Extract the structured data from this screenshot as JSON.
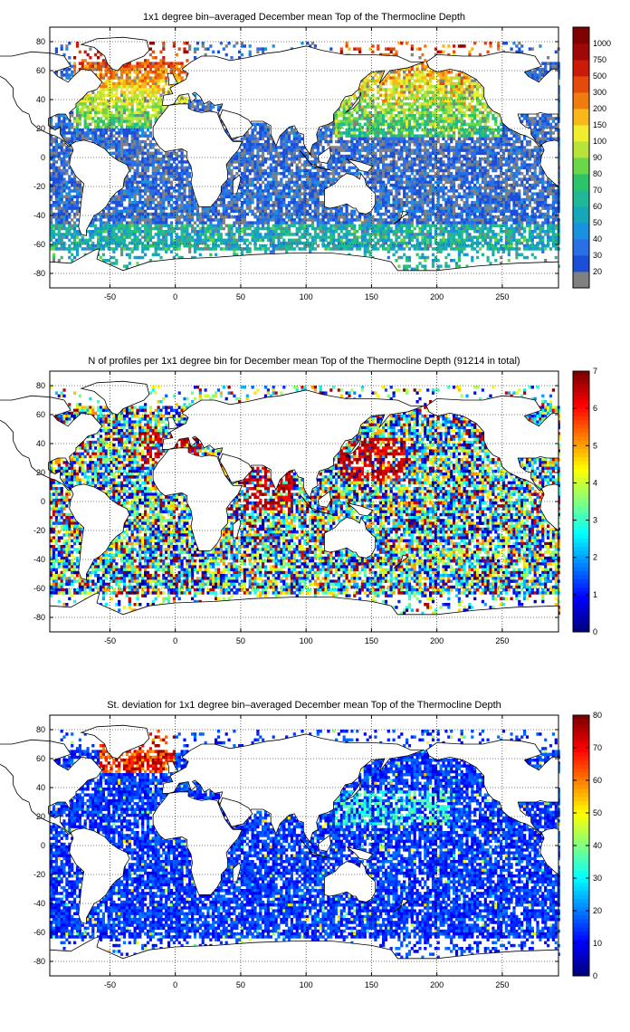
{
  "panels": [
    {
      "title": "1x1 degree bin–averaged December mean Top of the Thermocline Depth",
      "colorbar": {
        "type": "categorical",
        "labels": [
          "20",
          "30",
          "40",
          "50",
          "60",
          "70",
          "80",
          "90",
          "100",
          "150",
          "200",
          "300",
          "500",
          "750",
          "1000"
        ],
        "colors": [
          "#808080",
          "#1c4fd8",
          "#2a6fe6",
          "#1a90e0",
          "#14a8b8",
          "#20b896",
          "#2cc468",
          "#6cd64a",
          "#b8e43a",
          "#f0ec2e",
          "#f8b81a",
          "#f07c10",
          "#e44a0c",
          "#cc1a08",
          "#a00808",
          "#800000"
        ]
      }
    },
    {
      "title": "N of profiles per 1x1 degree bin for December mean Top of the Thermocline Depth  (91214 in total)",
      "colorbar": {
        "type": "continuous",
        "min": 0,
        "max": 7,
        "ticks": [
          "0",
          "1",
          "2",
          "3",
          "4",
          "5",
          "6",
          "7"
        ]
      }
    },
    {
      "title": "St. deviation for 1x1 degree bin–averaged December mean Top of the Thermocline Depth",
      "colorbar": {
        "type": "continuous",
        "min": 0,
        "max": 80,
        "ticks": [
          "0",
          "10",
          "20",
          "30",
          "40",
          "50",
          "60",
          "70",
          "80"
        ]
      }
    }
  ],
  "axes": {
    "x_ticks": [
      "-50",
      "0",
      "50",
      "100",
      "150",
      "200",
      "250"
    ],
    "x_values": [
      -50,
      0,
      50,
      100,
      150,
      200,
      250
    ],
    "y_ticks": [
      "80",
      "60",
      "40",
      "20",
      "0",
      "-20",
      "-40",
      "-60",
      "-80"
    ],
    "y_values": [
      80,
      60,
      40,
      20,
      0,
      -20,
      -40,
      -60,
      -80
    ],
    "xlim": [
      -96,
      293
    ],
    "ylim": [
      -90,
      90
    ],
    "grid": "dotted"
  },
  "chart_data": [
    {
      "type": "heatmap",
      "title": "1x1 degree bin–averaged December mean Top of the Thermocline Depth",
      "xlim": [
        -96,
        293
      ],
      "ylim": [
        -90,
        90
      ],
      "color_scale": [
        "20",
        "30",
        "40",
        "50",
        "60",
        "70",
        "80",
        "90",
        "100",
        "150",
        "200",
        "300",
        "500",
        "750",
        "1000"
      ]
    },
    {
      "type": "heatmap",
      "title": "N of profiles per 1x1 degree bin for December mean Top of the Thermocline Depth  (91214 in total)",
      "xlim": [
        -96,
        293
      ],
      "ylim": [
        -90,
        90
      ],
      "color_range": [
        0,
        7
      ],
      "total": 91214
    },
    {
      "type": "heatmap",
      "title": "St. deviation for 1x1 degree bin–averaged December mean Top of the Thermocline Depth",
      "xlim": [
        -96,
        293
      ],
      "ylim": [
        -90,
        90
      ],
      "color_range": [
        0,
        80
      ]
    }
  ]
}
